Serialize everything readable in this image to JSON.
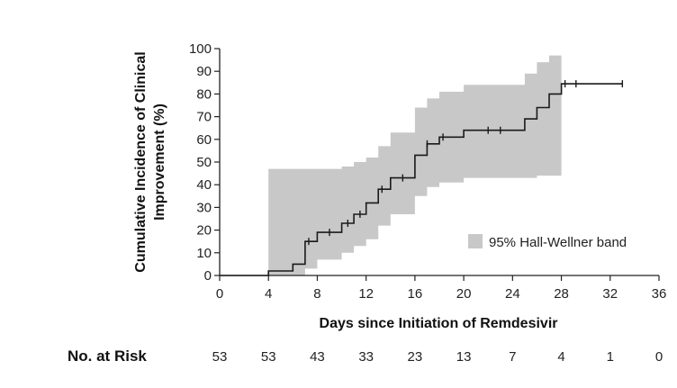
{
  "chart_data": {
    "type": "line",
    "subtype": "kaplan-meier step (cumulative incidence) with confidence band",
    "xlabel": "Days since Initiation of Remdesivir",
    "ylabel_line1": "Cumulative Incidence of Clinical",
    "ylabel_line2": "Improvement (%)",
    "xlim": [
      0,
      36
    ],
    "ylim": [
      0,
      100
    ],
    "x_ticks": [
      0,
      4,
      8,
      12,
      16,
      20,
      24,
      28,
      32,
      36
    ],
    "y_ticks": [
      0,
      10,
      20,
      30,
      40,
      50,
      60,
      70,
      80,
      90,
      100
    ],
    "grid": false,
    "legend": {
      "position": "bottom-right",
      "entries": [
        "95% Hall-Wellner band"
      ]
    },
    "band_color": "#c8c8c8",
    "line_color": "#1a1a1a",
    "step_curve": {
      "x": [
        0,
        4,
        6,
        7,
        8,
        10,
        11,
        12,
        13,
        14,
        16,
        17,
        18,
        20,
        25,
        26,
        27,
        28,
        33
      ],
      "y": [
        0,
        2,
        5,
        15,
        19,
        23,
        27,
        32,
        38,
        43,
        53,
        58,
        61,
        64,
        69,
        74,
        80,
        84.5,
        84.5
      ]
    },
    "censored": [
      {
        "x": 7.3,
        "y": 15
      },
      {
        "x": 9,
        "y": 19
      },
      {
        "x": 10.5,
        "y": 23
      },
      {
        "x": 11.5,
        "y": 27
      },
      {
        "x": 13.3,
        "y": 38
      },
      {
        "x": 15,
        "y": 43
      },
      {
        "x": 17,
        "y": 58
      },
      {
        "x": 18.3,
        "y": 61
      },
      {
        "x": 22,
        "y": 64
      },
      {
        "x": 23,
        "y": 64
      },
      {
        "x": 28.3,
        "y": 84.5
      },
      {
        "x": 29.2,
        "y": 84.5
      },
      {
        "x": 33,
        "y": 84.5
      }
    ],
    "band": {
      "x": [
        0,
        4,
        6,
        7,
        8,
        10,
        11,
        12,
        13,
        14,
        16,
        17,
        18,
        20,
        25,
        26,
        27,
        28
      ],
      "upper": [
        0,
        47,
        47,
        47,
        47,
        48,
        50,
        52,
        57,
        63,
        74,
        78,
        81,
        84,
        89,
        94,
        97,
        100
      ],
      "lower": [
        0,
        0,
        0,
        3,
        7,
        10,
        13,
        16,
        22,
        27,
        35,
        39,
        41,
        43,
        43,
        44,
        44,
        44
      ]
    },
    "risk_table": {
      "title": "No. at Risk",
      "x": [
        0,
        4,
        8,
        12,
        16,
        20,
        24,
        28,
        32,
        36
      ],
      "values": [
        "53",
        "53",
        "43",
        "33",
        "23",
        "13",
        "7",
        "4",
        "1",
        "0"
      ]
    }
  }
}
